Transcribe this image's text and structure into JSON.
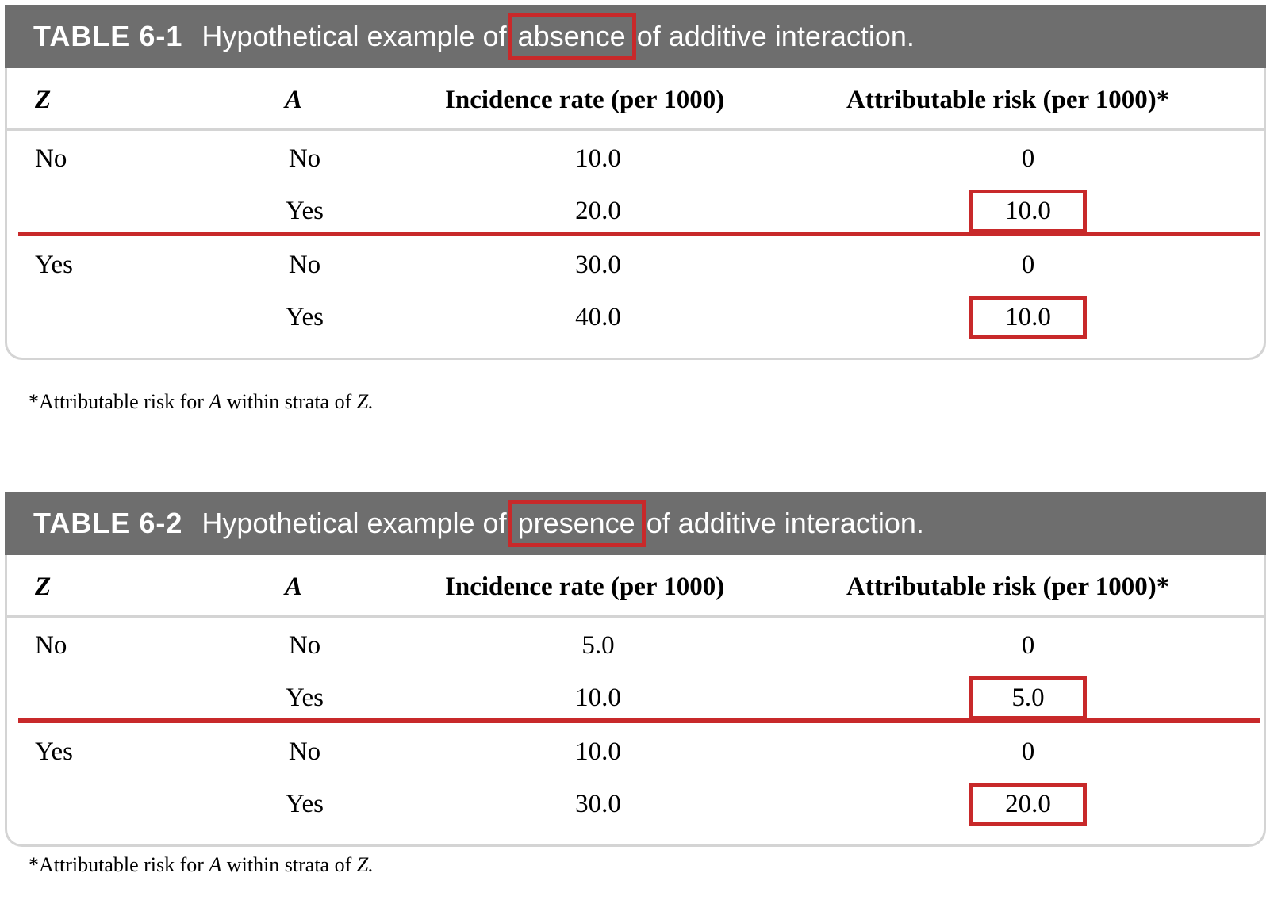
{
  "tables": [
    {
      "label": "TABLE 6-1",
      "title_pre": "Hypothetical example of ",
      "title_highlight": "absence",
      "title_post": " of additive interaction.",
      "headers": {
        "z": "Z",
        "a": "A",
        "incidence": "Incidence rate (per 1000)",
        "ar": "Attributable risk (per 1000)*"
      },
      "rows": [
        {
          "z": "No",
          "a": "No",
          "incidence": "10.0",
          "ar": "0"
        },
        {
          "z": "",
          "a": "Yes",
          "incidence": "20.0",
          "ar": "10.0"
        },
        {
          "z": "Yes",
          "a": "No",
          "incidence": "30.0",
          "ar": "0"
        },
        {
          "z": "",
          "a": "Yes",
          "incidence": "40.0",
          "ar": "10.0"
        }
      ],
      "footnote_pre": "*Attributable risk for ",
      "footnote_a": "A",
      "footnote_mid": " within strata of ",
      "footnote_z": "Z."
    },
    {
      "label": "TABLE 6-2",
      "title_pre": "Hypothetical example of ",
      "title_highlight": "presence",
      "title_post": " of additive interaction.",
      "headers": {
        "z": "Z",
        "a": "A",
        "incidence": "Incidence rate (per 1000)",
        "ar": "Attributable risk (per 1000)*"
      },
      "rows": [
        {
          "z": "No",
          "a": "No",
          "incidence": "5.0",
          "ar": "0"
        },
        {
          "z": "",
          "a": "Yes",
          "incidence": "10.0",
          "ar": "5.0"
        },
        {
          "z": "Yes",
          "a": "No",
          "incidence": "10.0",
          "ar": "0"
        },
        {
          "z": "",
          "a": "Yes",
          "incidence": "30.0",
          "ar": "20.0"
        }
      ],
      "footnote_pre": "*Attributable risk for ",
      "footnote_a": "A",
      "footnote_mid": " within strata of ",
      "footnote_z": "Z."
    }
  ],
  "colors": {
    "title_bar": "#6e6e6e",
    "highlight": "#c8292a",
    "border": "#d4d4d4"
  }
}
